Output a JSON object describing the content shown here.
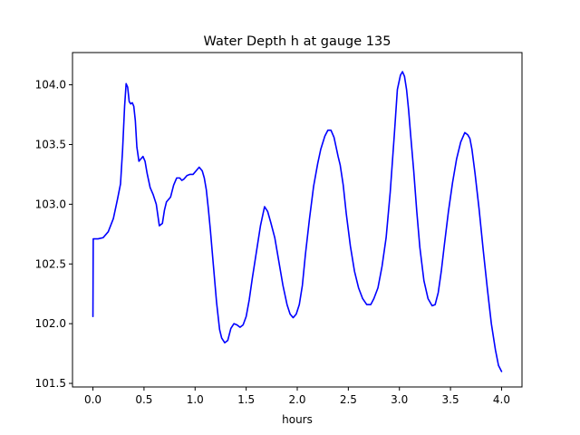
{
  "chart_data": {
    "type": "line",
    "title": "Water Depth h at gauge 135",
    "xlabel": "hours",
    "ylabel": "",
    "xlim": [
      -0.2,
      4.2
    ],
    "ylim": [
      101.47,
      104.27
    ],
    "xticks": [
      0.0,
      0.5,
      1.0,
      1.5,
      2.0,
      2.5,
      3.0,
      3.5,
      4.0
    ],
    "xtick_labels": [
      "0.0",
      "0.5",
      "1.0",
      "1.5",
      "2.0",
      "2.5",
      "3.0",
      "3.5",
      "4.0"
    ],
    "yticks": [
      101.5,
      102.0,
      102.5,
      103.0,
      103.5,
      104.0
    ],
    "ytick_labels": [
      "101.5",
      "102.0",
      "102.5",
      "103.0",
      "103.5",
      "104.0"
    ],
    "grid": false,
    "series": [
      {
        "name": "",
        "color": "#0000ff",
        "x": [
          0.0,
          0.003,
          0.05,
          0.1,
          0.15,
          0.2,
          0.24,
          0.27,
          0.29,
          0.31,
          0.325,
          0.34,
          0.355,
          0.37,
          0.385,
          0.4,
          0.415,
          0.43,
          0.45,
          0.47,
          0.49,
          0.51,
          0.53,
          0.56,
          0.59,
          0.62,
          0.65,
          0.68,
          0.7,
          0.72,
          0.74,
          0.76,
          0.79,
          0.82,
          0.85,
          0.87,
          0.89,
          0.92,
          0.95,
          0.98,
          1.01,
          1.04,
          1.07,
          1.09,
          1.11,
          1.13,
          1.15,
          1.18,
          1.21,
          1.24,
          1.26,
          1.29,
          1.32,
          1.35,
          1.38,
          1.41,
          1.44,
          1.47,
          1.5,
          1.53,
          1.56,
          1.6,
          1.64,
          1.68,
          1.71,
          1.74,
          1.78,
          1.82,
          1.86,
          1.9,
          1.93,
          1.96,
          1.99,
          2.02,
          2.05,
          2.08,
          2.12,
          2.16,
          2.2,
          2.23,
          2.27,
          2.3,
          2.33,
          2.36,
          2.38,
          2.4,
          2.42,
          2.45,
          2.48,
          2.52,
          2.56,
          2.6,
          2.64,
          2.68,
          2.72,
          2.75,
          2.79,
          2.83,
          2.87,
          2.91,
          2.95,
          2.98,
          3.01,
          3.03,
          3.05,
          3.07,
          3.09,
          3.11,
          3.14,
          3.17,
          3.2,
          3.24,
          3.28,
          3.32,
          3.35,
          3.38,
          3.41,
          3.44,
          3.48,
          3.52,
          3.56,
          3.6,
          3.64,
          3.67,
          3.69,
          3.71,
          3.74,
          3.78,
          3.82,
          3.86,
          3.9,
          3.94,
          3.97,
          4.0
        ],
        "y": [
          102.06,
          102.71,
          102.71,
          102.72,
          102.77,
          102.88,
          103.04,
          103.17,
          103.45,
          103.82,
          104.01,
          103.98,
          103.86,
          103.84,
          103.85,
          103.82,
          103.7,
          103.48,
          103.36,
          103.38,
          103.4,
          103.36,
          103.26,
          103.14,
          103.08,
          103.0,
          102.82,
          102.84,
          102.95,
          103.02,
          103.04,
          103.06,
          103.16,
          103.22,
          103.22,
          103.2,
          103.21,
          103.24,
          103.25,
          103.25,
          103.28,
          103.31,
          103.28,
          103.22,
          103.12,
          102.96,
          102.78,
          102.48,
          102.18,
          101.95,
          101.88,
          101.84,
          101.86,
          101.96,
          102.0,
          101.99,
          101.97,
          101.99,
          102.06,
          102.2,
          102.38,
          102.6,
          102.82,
          102.98,
          102.94,
          102.85,
          102.72,
          102.52,
          102.32,
          102.16,
          102.08,
          102.05,
          102.08,
          102.16,
          102.32,
          102.58,
          102.88,
          103.15,
          103.34,
          103.46,
          103.57,
          103.62,
          103.62,
          103.56,
          103.48,
          103.4,
          103.33,
          103.16,
          102.92,
          102.65,
          102.44,
          102.3,
          102.21,
          102.16,
          102.16,
          102.21,
          102.3,
          102.48,
          102.72,
          103.1,
          103.58,
          103.96,
          104.08,
          104.11,
          104.07,
          103.96,
          103.79,
          103.58,
          103.28,
          102.94,
          102.64,
          102.36,
          102.21,
          102.15,
          102.16,
          102.26,
          102.44,
          102.66,
          102.94,
          103.18,
          103.38,
          103.52,
          103.6,
          103.58,
          103.55,
          103.46,
          103.26,
          102.96,
          102.62,
          102.3,
          102.0,
          101.78,
          101.65,
          101.6
        ]
      }
    ]
  }
}
